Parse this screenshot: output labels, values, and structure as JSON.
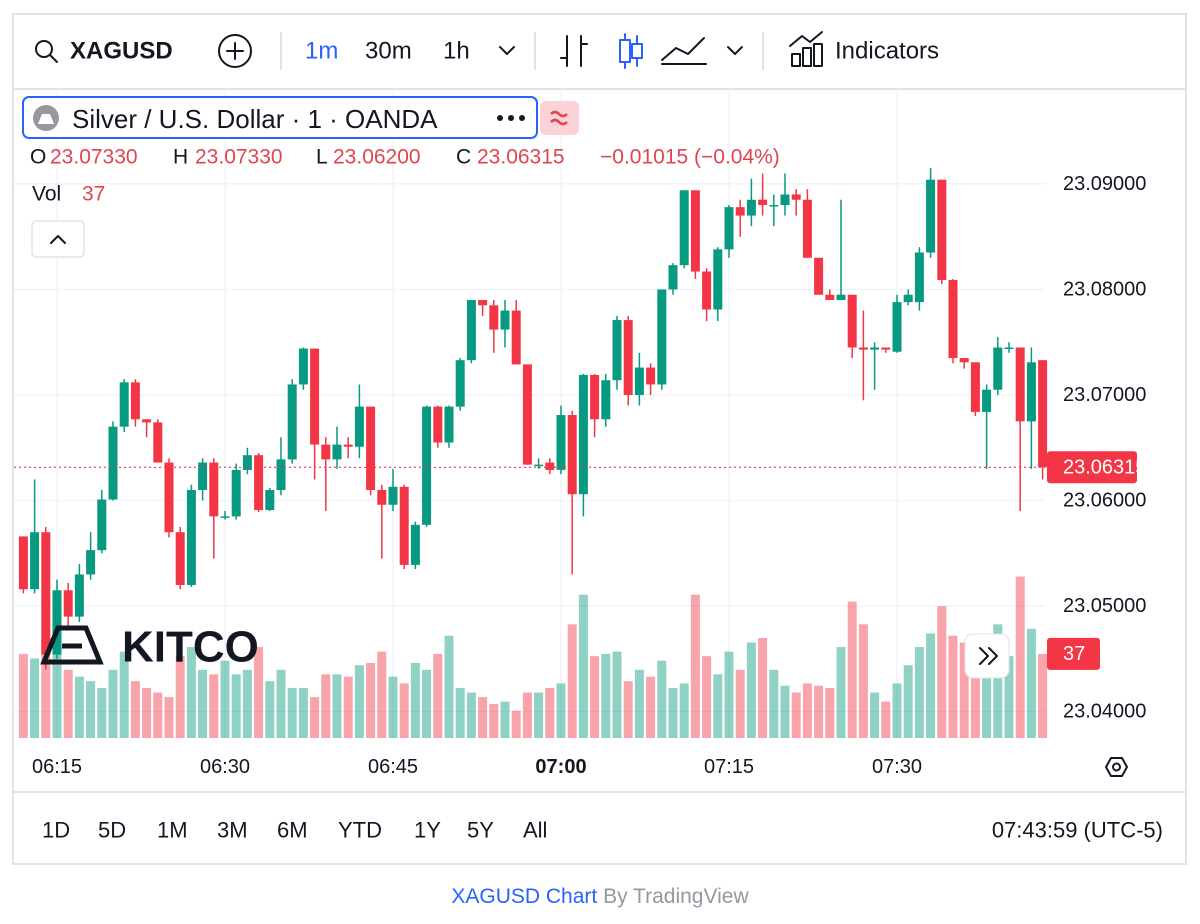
{
  "toolbar": {
    "symbol": "XAGUSD",
    "intervals": [
      "1m",
      "30m",
      "1h"
    ],
    "indicators": "Indicators"
  },
  "legend": {
    "title": "Silver / U.S. Dollar · 1 · OANDA",
    "o_label": "O",
    "o": "23.07330",
    "h_label": "H",
    "h": "23.07330",
    "l_label": "L",
    "l": "23.06200",
    "c_label": "C",
    "c": "23.06315",
    "change": "−0.01015 (−0.04%)",
    "vol_label": "Vol"
  },
  "watermark": "KITCO",
  "chart_data": {
    "type": "candlestick",
    "up_color": "#089981",
    "down_color": "#f23645",
    "grid": true,
    "x": [
      "06:12",
      "06:13",
      "06:14",
      "06:15",
      "06:16",
      "06:17",
      "06:18",
      "06:19",
      "06:20",
      "06:21",
      "06:22",
      "06:23",
      "06:24",
      "06:25",
      "06:26",
      "06:27",
      "06:28",
      "06:29",
      "06:30",
      "06:31",
      "06:32",
      "06:33",
      "06:34",
      "06:35",
      "06:36",
      "06:37",
      "06:38",
      "06:39",
      "06:40",
      "06:41",
      "06:42",
      "06:43",
      "06:44",
      "06:45",
      "06:46",
      "06:47",
      "06:48",
      "06:49",
      "06:50",
      "06:51",
      "06:52",
      "06:53",
      "06:54",
      "06:55",
      "06:56",
      "06:57",
      "06:58",
      "06:59",
      "07:00",
      "07:01",
      "07:02",
      "07:03",
      "07:04",
      "07:05",
      "07:06",
      "07:07",
      "07:08",
      "07:09",
      "07:10",
      "07:11",
      "07:12",
      "07:13",
      "07:14",
      "07:15",
      "07:16",
      "07:17",
      "07:18",
      "07:19",
      "07:20",
      "07:21",
      "07:22",
      "07:23",
      "07:24",
      "07:25",
      "07:26",
      "07:27",
      "07:28",
      "07:29",
      "07:30",
      "07:31",
      "07:32",
      "07:33",
      "07:34",
      "07:35",
      "07:36",
      "07:37",
      "07:38",
      "07:39",
      "07:40",
      "07:41",
      "07:42",
      "07:43"
    ],
    "open": [
      23.0566,
      23.0516,
      23.057,
      23.0454,
      23.0515,
      23.049,
      23.053,
      23.0553,
      23.0601,
      23.067,
      23.0712,
      23.0677,
      23.0674,
      23.0636,
      23.057,
      23.052,
      23.061,
      23.0636,
      23.0585,
      23.0585,
      23.0629,
      23.0643,
      23.0591,
      23.061,
      23.0639,
      23.071,
      23.0744,
      23.0653,
      23.0639,
      23.0653,
      23.0651,
      23.0689,
      23.061,
      23.0596,
      23.0613,
      23.0539,
      23.0577,
      23.0689,
      23.0655,
      23.0689,
      23.0733,
      23.079,
      23.0785,
      23.0762,
      23.078,
      23.0729,
      23.0634,
      23.0636,
      23.0629,
      23.0681,
      23.0606,
      23.0719,
      23.0677,
      23.0714,
      23.0771,
      23.07,
      23.0726,
      23.071,
      23.08,
      23.0823,
      23.0894,
      23.0817,
      23.0781,
      23.0838,
      23.0878,
      23.087,
      23.0885,
      23.088,
      23.088,
      23.089,
      23.0885,
      23.083,
      23.0795,
      23.079,
      23.0795,
      23.0745,
      23.0743,
      23.0745,
      23.0741,
      23.0788,
      23.0788,
      23.0835,
      23.0904,
      23.0809,
      23.0735,
      23.0731,
      23.0684,
      23.0705,
      23.0745,
      23.0745,
      23.0675,
      23.0733
    ],
    "high": [
      23.0566,
      23.062,
      23.0575,
      23.0525,
      23.0522,
      23.054,
      23.057,
      23.061,
      23.0675,
      23.0715,
      23.0715,
      23.0677,
      23.0677,
      23.064,
      23.0575,
      23.0615,
      23.064,
      23.064,
      23.059,
      23.0635,
      23.065,
      23.0645,
      23.0612,
      23.066,
      23.0715,
      23.0745,
      23.0744,
      23.066,
      23.067,
      23.066,
      23.071,
      23.0689,
      23.0615,
      23.063,
      23.0615,
      23.058,
      23.069,
      23.069,
      23.069,
      23.0735,
      23.079,
      23.079,
      23.079,
      23.079,
      23.079,
      23.0729,
      23.064,
      23.064,
      23.069,
      23.0685,
      23.072,
      23.072,
      23.072,
      23.0775,
      23.0775,
      23.074,
      23.073,
      23.08,
      23.0825,
      23.0894,
      23.0894,
      23.082,
      23.084,
      23.088,
      23.0885,
      23.0905,
      23.091,
      23.089,
      23.091,
      23.0895,
      23.0895,
      23.083,
      23.08,
      23.0885,
      23.0795,
      23.078,
      23.075,
      23.0745,
      23.0795,
      23.08,
      23.084,
      23.0915,
      23.0904,
      23.081,
      23.0735,
      23.0731,
      23.071,
      23.0755,
      23.075,
      23.0745,
      23.0745,
      23.0733
    ],
    "low": [
      23.0512,
      23.0512,
      23.044,
      23.045,
      23.048,
      23.0485,
      23.0525,
      23.055,
      23.06,
      23.0665,
      23.067,
      23.066,
      23.0636,
      23.0565,
      23.0516,
      23.0518,
      23.06,
      23.0545,
      23.0582,
      23.0582,
      23.0625,
      23.0589,
      23.059,
      23.0605,
      23.0635,
      23.0705,
      23.062,
      23.059,
      23.063,
      23.064,
      23.064,
      23.0605,
      23.0545,
      23.059,
      23.0535,
      23.0535,
      23.0575,
      23.065,
      23.065,
      23.0685,
      23.073,
      23.0775,
      23.074,
      23.0745,
      23.0729,
      23.0634,
      23.063,
      23.0625,
      23.0625,
      23.053,
      23.0585,
      23.066,
      23.067,
      23.0705,
      23.069,
      23.069,
      23.07,
      23.0705,
      23.0795,
      23.082,
      23.081,
      23.077,
      23.077,
      23.083,
      23.085,
      23.086,
      23.087,
      23.086,
      23.087,
      23.087,
      23.083,
      23.0795,
      23.079,
      23.079,
      23.0735,
      23.0695,
      23.0705,
      23.074,
      23.074,
      23.0785,
      23.078,
      23.083,
      23.0805,
      23.073,
      23.0725,
      23.068,
      23.063,
      23.07,
      23.074,
      23.059,
      23.063,
      23.062
    ],
    "close": [
      23.0516,
      23.057,
      23.0454,
      23.0515,
      23.049,
      23.053,
      23.0553,
      23.0601,
      23.067,
      23.0712,
      23.0677,
      23.0674,
      23.0636,
      23.057,
      23.052,
      23.061,
      23.0636,
      23.0585,
      23.0585,
      23.0629,
      23.0643,
      23.0591,
      23.061,
      23.0639,
      23.071,
      23.0744,
      23.0653,
      23.0639,
      23.0653,
      23.0651,
      23.0689,
      23.061,
      23.0596,
      23.0613,
      23.0539,
      23.0577,
      23.0689,
      23.0655,
      23.0689,
      23.0733,
      23.079,
      23.0785,
      23.0762,
      23.078,
      23.0729,
      23.0634,
      23.0634,
      23.0629,
      23.0681,
      23.0606,
      23.0719,
      23.0677,
      23.0714,
      23.0771,
      23.07,
      23.0726,
      23.071,
      23.08,
      23.0823,
      23.0894,
      23.0817,
      23.0781,
      23.0838,
      23.0878,
      23.087,
      23.0885,
      23.088,
      23.088,
      23.089,
      23.0885,
      23.083,
      23.0795,
      23.079,
      23.0795,
      23.0745,
      23.0743,
      23.0745,
      23.0743,
      23.0788,
      23.0795,
      23.0835,
      23.0904,
      23.0809,
      23.0735,
      23.0731,
      23.0684,
      23.0705,
      23.0745,
      23.0745,
      23.0675,
      23.0731,
      23.06315
    ],
    "volume": [
      37,
      35,
      44,
      48,
      30,
      27,
      25,
      22,
      30,
      38,
      25,
      22,
      20,
      18,
      36,
      40,
      30,
      28,
      34,
      28,
      30,
      40,
      25,
      30,
      22,
      22,
      18,
      28,
      28,
      27,
      32,
      33,
      38,
      27,
      24,
      33,
      30,
      37,
      45,
      22,
      20,
      18,
      15,
      16,
      12,
      20,
      20,
      22,
      24,
      50,
      63,
      36,
      37,
      38,
      25,
      30,
      27,
      34,
      22,
      24,
      63,
      36,
      28,
      38,
      30,
      42,
      44,
      30,
      23,
      20,
      24,
      23,
      22,
      40,
      60,
      50,
      20,
      16,
      24,
      32,
      40,
      46,
      58,
      45,
      42,
      37,
      30,
      50,
      36,
      71,
      48,
      37
    ],
    "ylim": [
      23.0375,
      23.0989
    ],
    "yticks": [
      {
        "value": 23.04,
        "label": "23.04000"
      },
      {
        "value": 23.05,
        "label": "23.05000"
      },
      {
        "value": 23.06,
        "label": "23.06000"
      },
      {
        "value": 23.07,
        "label": "23.07000"
      },
      {
        "value": 23.08,
        "label": "23.08000"
      },
      {
        "value": 23.09,
        "label": "23.09000"
      }
    ],
    "vlim": [
      0,
      285
    ],
    "xticks": [
      "06:15",
      "06:30",
      "06:45",
      "07:00",
      "07:15",
      "07:30"
    ]
  },
  "ranges": [
    "1D",
    "5D",
    "1M",
    "3M",
    "6M",
    "YTD",
    "1Y",
    "5Y",
    "All"
  ],
  "clock": "07:43:59 (UTC-5)",
  "footer": {
    "link": "XAGUSD Chart",
    "by": "By TradingView"
  }
}
